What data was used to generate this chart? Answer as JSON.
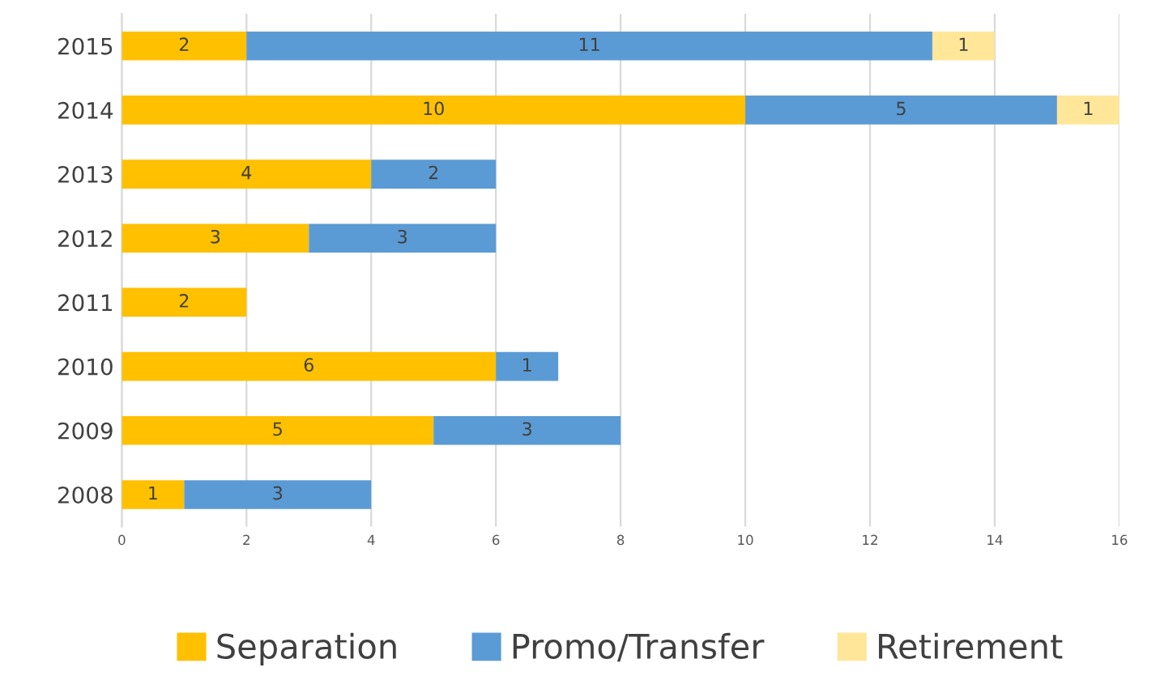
{
  "chart_data": {
    "type": "bar",
    "orientation": "horizontal",
    "stacked": true,
    "data_labels": true,
    "categories": [
      "2015",
      "2014",
      "2013",
      "2012",
      "2011",
      "2010",
      "2009",
      "2008"
    ],
    "series": [
      {
        "name": "Separation",
        "color": "#ffc000",
        "values": [
          2,
          10,
          4,
          3,
          2,
          6,
          5,
          1
        ]
      },
      {
        "name": "Promo/Transfer",
        "color": "#5b9bd5",
        "values": [
          11,
          5,
          2,
          3,
          null,
          1,
          3,
          3
        ]
      },
      {
        "name": "Retirement",
        "color": "#ffe699",
        "values": [
          1,
          1,
          null,
          null,
          null,
          null,
          null,
          null
        ]
      }
    ],
    "xlim": [
      0,
      16
    ],
    "xticks": [
      0,
      2,
      4,
      6,
      8,
      10,
      12,
      14,
      16
    ],
    "grid": "x",
    "legend": "bottom"
  }
}
